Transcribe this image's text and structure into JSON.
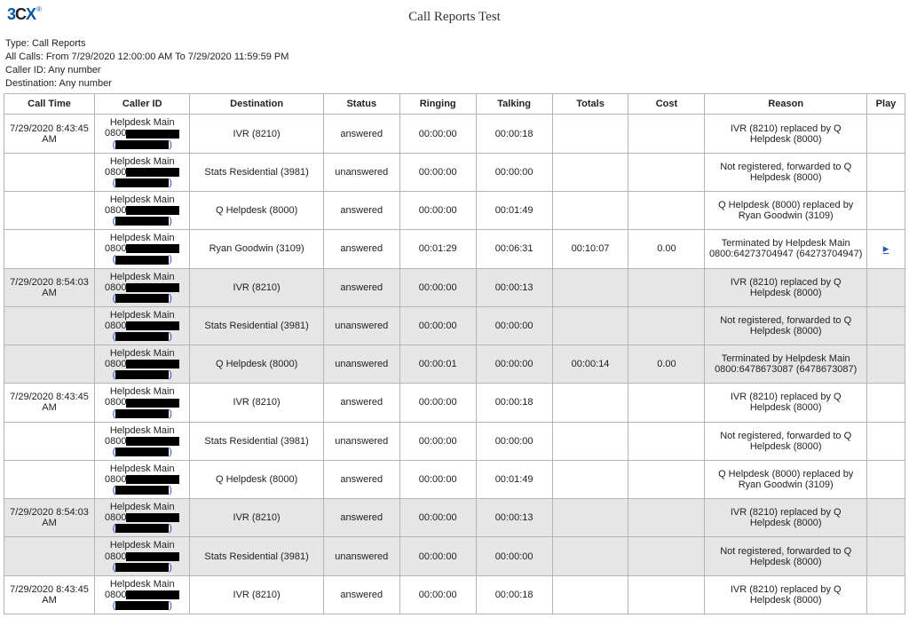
{
  "logo": {
    "three": "3",
    "c": "C",
    "x": "X",
    "reg": "®"
  },
  "title": "Call Reports Test",
  "meta": {
    "type_label": "Type: Call Reports",
    "all_calls": "All Calls: From 7/29/2020 12:00:00 AM To 7/29/2020 11:59:59 PM",
    "caller_id": "Caller ID: Any number",
    "destination": "Destination: Any number"
  },
  "headers": {
    "call_time": "Call Time",
    "caller_id": "Caller ID",
    "destination": "Destination",
    "status": "Status",
    "ringing": "Ringing",
    "talking": "Talking",
    "totals": "Totals",
    "cost": "Cost",
    "reason": "Reason",
    "play": "Play"
  },
  "caller_label": "Helpdesk Main",
  "caller_prefix": "0800",
  "rows": [
    {
      "group": 0,
      "call_time": "7/29/2020 8:43:45 AM",
      "destination": "IVR (8210)",
      "status": "answered",
      "ringing": "00:00:00",
      "talking": "00:00:18",
      "totals": "",
      "cost": "",
      "reason": "IVR (8210) replaced by Q Helpdesk (8000)",
      "play": ""
    },
    {
      "group": 0,
      "call_time": "",
      "destination": "Stats Residential (3981)",
      "status": "unanswered",
      "ringing": "00:00:00",
      "talking": "00:00:00",
      "totals": "",
      "cost": "",
      "reason": "Not registered, forwarded to Q Helpdesk (8000)",
      "play": ""
    },
    {
      "group": 0,
      "call_time": "",
      "destination": "Q Helpdesk (8000)",
      "status": "answered",
      "ringing": "00:00:00",
      "talking": "00:01:49",
      "totals": "",
      "cost": "",
      "reason": "Q Helpdesk (8000) replaced by Ryan Goodwin (3109)",
      "play": ""
    },
    {
      "group": 0,
      "call_time": "",
      "destination": "Ryan Goodwin (3109)",
      "status": "answered",
      "ringing": "00:01:29",
      "talking": "00:06:31",
      "totals": "00:10:07",
      "cost": "0.00",
      "reason": "Terminated by Helpdesk Main 0800:64273704947 (64273704947)",
      "play": "▸"
    },
    {
      "group": 1,
      "call_time": "7/29/2020 8:54:03 AM",
      "destination": "IVR (8210)",
      "status": "answered",
      "ringing": "00:00:00",
      "talking": "00:00:13",
      "totals": "",
      "cost": "",
      "reason": "IVR (8210) replaced by Q Helpdesk (8000)",
      "play": ""
    },
    {
      "group": 1,
      "call_time": "",
      "destination": "Stats Residential (3981)",
      "status": "unanswered",
      "ringing": "00:00:00",
      "talking": "00:00:00",
      "totals": "",
      "cost": "",
      "reason": "Not registered, forwarded to Q Helpdesk (8000)",
      "play": ""
    },
    {
      "group": 1,
      "call_time": "",
      "destination": "Q Helpdesk (8000)",
      "status": "unanswered",
      "ringing": "00:00:01",
      "talking": "00:00:00",
      "totals": "00:00:14",
      "cost": "0.00",
      "reason": "Terminated by Helpdesk Main 0800:6478673087 (6478673087)",
      "play": ""
    },
    {
      "group": 0,
      "call_time": "7/29/2020 8:43:45 AM",
      "destination": "IVR (8210)",
      "status": "answered",
      "ringing": "00:00:00",
      "talking": "00:00:18",
      "totals": "",
      "cost": "",
      "reason": "IVR (8210) replaced by Q Helpdesk (8000)",
      "play": ""
    },
    {
      "group": 0,
      "call_time": "",
      "destination": "Stats Residential (3981)",
      "status": "unanswered",
      "ringing": "00:00:00",
      "talking": "00:00:00",
      "totals": "",
      "cost": "",
      "reason": "Not registered, forwarded to Q Helpdesk (8000)",
      "play": ""
    },
    {
      "group": 0,
      "call_time": "",
      "destination": "Q Helpdesk (8000)",
      "status": "answered",
      "ringing": "00:00:00",
      "talking": "00:01:49",
      "totals": "",
      "cost": "",
      "reason": "Q Helpdesk (8000) replaced by Ryan Goodwin (3109)",
      "play": ""
    },
    {
      "group": 1,
      "call_time": "7/29/2020 8:54:03 AM",
      "destination": "IVR (8210)",
      "status": "answered",
      "ringing": "00:00:00",
      "talking": "00:00:13",
      "totals": "",
      "cost": "",
      "reason": "IVR (8210) replaced by Q Helpdesk (8000)",
      "play": ""
    },
    {
      "group": 1,
      "call_time": "",
      "destination": "Stats Residential (3981)",
      "status": "unanswered",
      "ringing": "00:00:00",
      "talking": "00:00:00",
      "totals": "",
      "cost": "",
      "reason": "Not registered, forwarded to Q Helpdesk (8000)",
      "play": ""
    },
    {
      "group": 0,
      "call_time": "7/29/2020 8:43:45 AM",
      "destination": "IVR (8210)",
      "status": "answered",
      "ringing": "00:00:00",
      "talking": "00:00:18",
      "totals": "",
      "cost": "",
      "reason": "IVR (8210) replaced by Q Helpdesk (8000)",
      "play": ""
    }
  ],
  "colors": {
    "alt_row": "#e6e6e6",
    "border": "#b5b5b5"
  }
}
